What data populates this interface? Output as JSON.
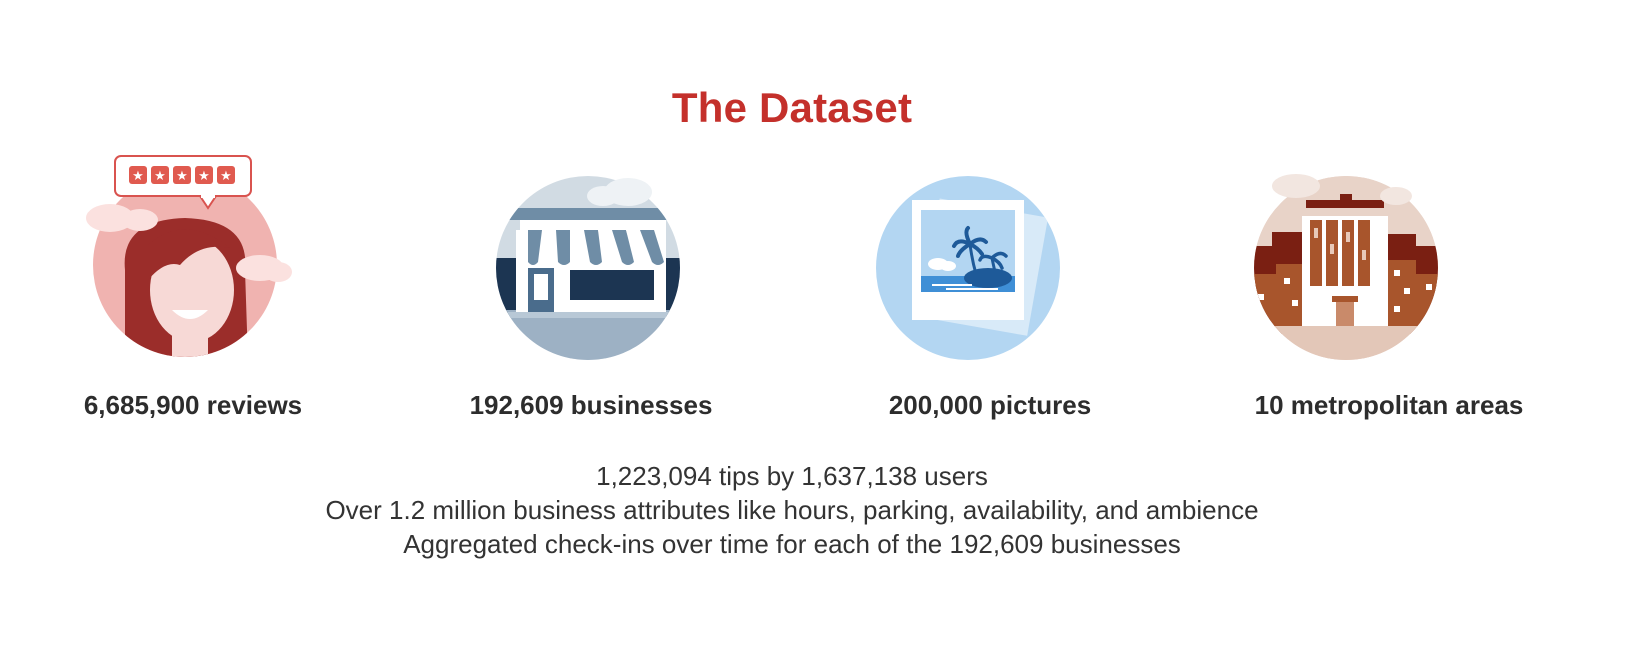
{
  "title": "The Dataset",
  "colors": {
    "title": "#c4302b",
    "text": "#2d2d2d"
  },
  "stats": [
    {
      "label": "6,685,900 reviews",
      "icon": "reviewer-icon"
    },
    {
      "label": "192,609 businesses",
      "icon": "storefront-icon"
    },
    {
      "label": "200,000 pictures",
      "icon": "photo-icon"
    },
    {
      "label": "10 metropolitan areas",
      "icon": "city-icon"
    }
  ],
  "details": [
    "1,223,094 tips by 1,637,138 users",
    "Over 1.2 million business attributes like hours, parking, availability, and ambience",
    "Aggregated check-ins over time for each of the 192,609 businesses"
  ]
}
